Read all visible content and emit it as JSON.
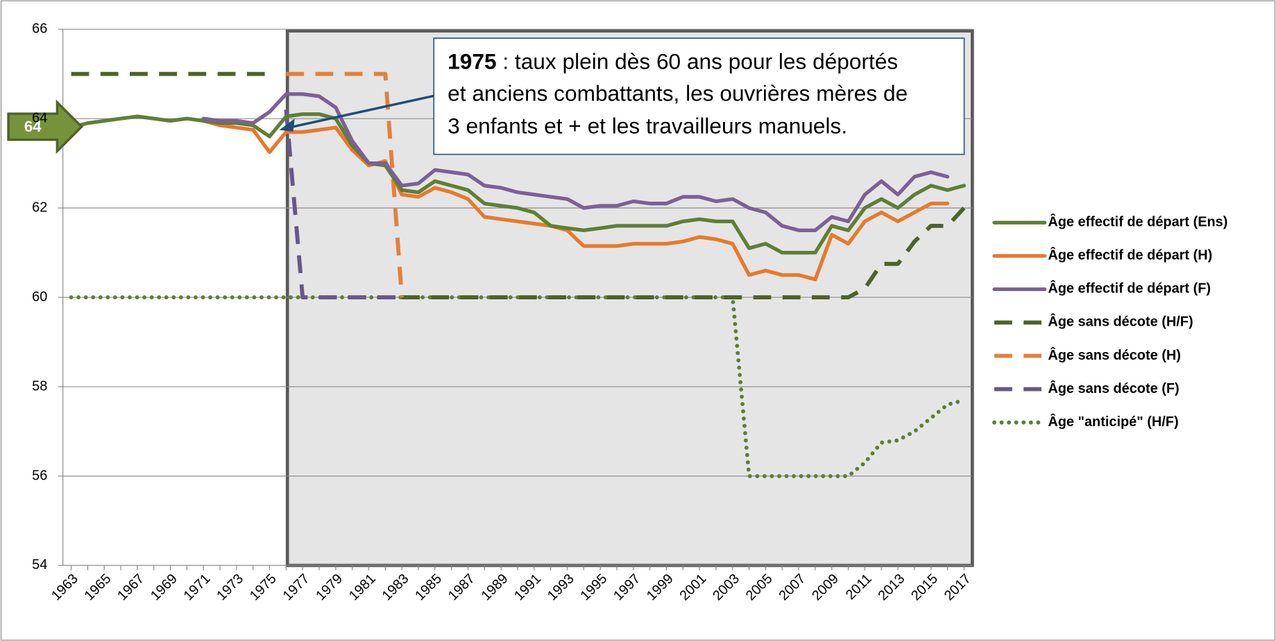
{
  "chart_data": {
    "type": "line",
    "categories": [
      "1963",
      null,
      "1965",
      null,
      "1967",
      null,
      "1969",
      null,
      "1971",
      null,
      "1973",
      null,
      "1975",
      null,
      "1977",
      null,
      "1979",
      null,
      "1981",
      null,
      "1983",
      null,
      "1985",
      null,
      "1987",
      null,
      "1989",
      null,
      "1991",
      null,
      "1993",
      null,
      "1995",
      null,
      "1997",
      null,
      "1999",
      null,
      "2001",
      null,
      "2003",
      null,
      "2005",
      null,
      "2007",
      null,
      "2009",
      null,
      "2011",
      null,
      "2013",
      null,
      "2015",
      null,
      "2017"
    ],
    "ylim": [
      54,
      66
    ],
    "yticks": [
      54,
      56,
      58,
      60,
      62,
      64,
      66
    ],
    "grid": true,
    "series": [
      {
        "name": "Âge effectif de départ (Ens)",
        "color": "#5e7f35",
        "style": "solid",
        "values": [
          63.8,
          63.9,
          63.95,
          64.0,
          64.05,
          64.0,
          63.95,
          64.0,
          63.95,
          63.9,
          63.9,
          63.85,
          63.6,
          64.05,
          64.1,
          64.1,
          64.0,
          63.4,
          63.0,
          62.95,
          62.4,
          62.35,
          62.6,
          62.5,
          62.4,
          62.1,
          62.05,
          62.0,
          61.9,
          61.6,
          61.55,
          61.5,
          61.55,
          61.6,
          61.6,
          61.6,
          61.6,
          61.7,
          61.75,
          61.7,
          61.7,
          61.1,
          61.2,
          61.0,
          61.0,
          61.0,
          61.6,
          61.5,
          62.0,
          62.2,
          62.0,
          62.3,
          62.5,
          62.4,
          62.5
        ]
      },
      {
        "name": "Âge effectif de départ (H)",
        "color": "#e8792b",
        "style": "solid",
        "values": [
          null,
          null,
          null,
          null,
          null,
          null,
          null,
          null,
          63.95,
          63.85,
          63.8,
          63.75,
          63.25,
          63.7,
          63.7,
          63.75,
          63.8,
          63.3,
          62.95,
          63.05,
          62.3,
          62.25,
          62.45,
          62.35,
          62.2,
          61.8,
          61.75,
          61.7,
          61.65,
          61.6,
          61.5,
          61.15,
          61.15,
          61.15,
          61.2,
          61.2,
          61.2,
          61.25,
          61.35,
          61.3,
          61.2,
          60.5,
          60.6,
          60.5,
          60.5,
          60.4,
          61.4,
          61.2,
          61.7,
          61.9,
          61.7,
          61.9,
          62.1,
          62.1,
          null
        ]
      },
      {
        "name": "Âge effectif de départ (F)",
        "color": "#7a6196",
        "style": "solid",
        "values": [
          null,
          null,
          null,
          null,
          null,
          null,
          null,
          null,
          64.0,
          63.95,
          63.95,
          63.9,
          64.15,
          64.55,
          64.55,
          64.5,
          64.25,
          63.5,
          63.0,
          63.0,
          62.5,
          62.55,
          62.85,
          62.8,
          62.75,
          62.5,
          62.45,
          62.35,
          62.3,
          62.25,
          62.2,
          62.0,
          62.05,
          62.05,
          62.15,
          62.1,
          62.1,
          62.25,
          62.25,
          62.15,
          62.2,
          62.0,
          61.9,
          61.6,
          61.5,
          61.5,
          61.8,
          61.7,
          62.3,
          62.6,
          62.3,
          62.7,
          62.8,
          62.7,
          null
        ]
      },
      {
        "name": "Âge sans décote (H/F)",
        "color": "#4f6228",
        "style": "dashed",
        "values": [
          65,
          65,
          65,
          65,
          65,
          65,
          65,
          65,
          65,
          65,
          65,
          65,
          65,
          null,
          null,
          null,
          null,
          null,
          null,
          null,
          60,
          60,
          60,
          60,
          60,
          60,
          60,
          60,
          60,
          60,
          60,
          60,
          60,
          60,
          60,
          60,
          60,
          60,
          60,
          60,
          60,
          60,
          60,
          60,
          60,
          60,
          60,
          60,
          60.2,
          60.75,
          60.75,
          61.25,
          61.6,
          61.6,
          62.0
        ]
      },
      {
        "name": "Âge sans décote (H)",
        "color": "#e4803a",
        "style": "dashed",
        "values": [
          null,
          null,
          null,
          null,
          null,
          null,
          null,
          null,
          null,
          null,
          null,
          null,
          null,
          65,
          65,
          65,
          65,
          65,
          65,
          65,
          60,
          null,
          null,
          null,
          null,
          null,
          null,
          null,
          null,
          null,
          null,
          null,
          null,
          null,
          null,
          null,
          null,
          null,
          null,
          null,
          null,
          null,
          null,
          null,
          null,
          null,
          null,
          null,
          null,
          null,
          null,
          null,
          null,
          null,
          null
        ]
      },
      {
        "name": "Âge sans décote (F)",
        "color": "#675887",
        "style": "dashed",
        "values": [
          null,
          null,
          null,
          null,
          null,
          null,
          null,
          null,
          null,
          null,
          null,
          null,
          null,
          64.2,
          60,
          60,
          60,
          60,
          60,
          60,
          60,
          null,
          null,
          null,
          null,
          null,
          null,
          null,
          null,
          null,
          null,
          null,
          null,
          null,
          null,
          null,
          null,
          null,
          null,
          null,
          null,
          null,
          null,
          null,
          null,
          null,
          null,
          null,
          null,
          null,
          null,
          null,
          null,
          null,
          null
        ]
      },
      {
        "name": "Âge \"anticipé\" (H/F)",
        "color": "#5f7d35",
        "style": "dotted",
        "values": [
          60,
          60,
          60,
          60,
          60,
          60,
          60,
          60,
          60,
          60,
          60,
          60,
          60,
          60,
          60,
          60,
          60,
          60,
          60,
          60,
          60,
          60,
          60,
          60,
          60,
          60,
          60,
          60,
          60,
          60,
          60,
          60,
          60,
          60,
          60,
          60,
          60,
          60,
          60,
          60,
          60,
          56,
          56,
          56,
          56,
          56,
          56,
          56,
          56.3,
          56.75,
          56.8,
          57.0,
          57.3,
          57.6,
          57.7
        ]
      }
    ],
    "annotation": {
      "bold": "1975",
      "lines": [
        " : taux plein dès 60 ans pour les déportés",
        "et anciens combattants, les ouvrières mères de",
        "3 enfants et + et les travailleurs manuels."
      ]
    },
    "callout": "64"
  }
}
